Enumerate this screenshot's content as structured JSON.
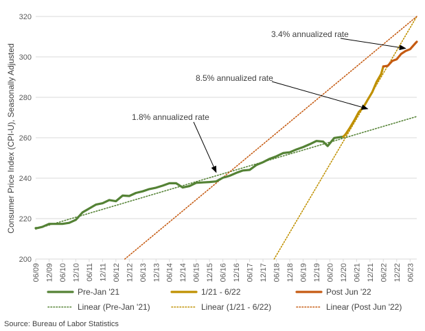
{
  "chart_data": {
    "type": "line",
    "title": "",
    "xlabel": "",
    "ylabel": "Consumer Price Index (CPI-U), Seasonally Adjusted",
    "ylim": [
      200,
      320
    ],
    "yticks": [
      200,
      220,
      240,
      260,
      280,
      300,
      320
    ],
    "xlim": [
      "2009-06",
      "2023-09"
    ],
    "xtick_labels": [
      "06/09",
      "12/09",
      "06/10",
      "12/10",
      "06/11",
      "12/11",
      "06/12",
      "12/12",
      "06/13",
      "12/13",
      "06/14",
      "12/14",
      "06/15",
      "12/15",
      "06/16",
      "12/16",
      "06/17",
      "12/17",
      "06/18",
      "12/18",
      "06/19",
      "12/19",
      "06/20",
      "12/20",
      "06/21",
      "12/21",
      "06/22",
      "12/22",
      "06/23"
    ],
    "grid": "horizontal",
    "legend_position": "bottom",
    "colors": {
      "pre": "#548235",
      "mid": "#BF9000",
      "post": "#C55A11",
      "grid": "#D9D9D9",
      "axis_text": "#595959"
    },
    "series": [
      {
        "name": "Pre-Jan '21",
        "style": "solid",
        "color": "#548235",
        "x": [
          "2009-06",
          "2009-07",
          "2009-09",
          "2009-12",
          "2010-03",
          "2010-06",
          "2010-09",
          "2010-12",
          "2011-03",
          "2011-06",
          "2011-09",
          "2011-12",
          "2012-03",
          "2012-06",
          "2012-09",
          "2012-12",
          "2013-03",
          "2013-06",
          "2013-09",
          "2013-12",
          "2014-03",
          "2014-06",
          "2014-09",
          "2014-12",
          "2015-03",
          "2015-06",
          "2015-09",
          "2015-12",
          "2016-03",
          "2016-06",
          "2016-09",
          "2016-12",
          "2017-03",
          "2017-06",
          "2017-09",
          "2017-12",
          "2018-03",
          "2018-06",
          "2018-09",
          "2018-12",
          "2019-03",
          "2019-06",
          "2019-09",
          "2019-12",
          "2020-03",
          "2020-05",
          "2020-08",
          "2020-12"
        ],
        "values": [
          215.3,
          215.4,
          215.9,
          217.4,
          217.4,
          217.4,
          217.9,
          219.4,
          223.1,
          225.0,
          226.9,
          227.6,
          229.2,
          228.6,
          231.4,
          231.2,
          232.7,
          233.5,
          234.6,
          235.3,
          236.3,
          237.5,
          237.5,
          235.4,
          236.1,
          237.7,
          237.9,
          238.1,
          238.4,
          240.2,
          241.2,
          242.6,
          243.8,
          244.1,
          246.5,
          247.9,
          249.6,
          250.8,
          252.4,
          252.8,
          254.2,
          255.4,
          256.8,
          258.4,
          258.1,
          255.9,
          259.9,
          260.5
        ]
      },
      {
        "name": "1/21 - 6/22",
        "style": "solid",
        "color": "#BF9000",
        "x": [
          "2020-12",
          "2021-01",
          "2021-03",
          "2021-05",
          "2021-07",
          "2021-09",
          "2021-11",
          "2022-01",
          "2022-03",
          "2022-05",
          "2022-06"
        ],
        "values": [
          260.5,
          261.6,
          264.9,
          268.6,
          272.7,
          275.0,
          278.8,
          282.5,
          287.7,
          291.5,
          295.3
        ]
      },
      {
        "name": "Post Jun '22",
        "style": "solid",
        "color": "#C55A11",
        "x": [
          "2022-06",
          "2022-08",
          "2022-10",
          "2022-12",
          "2023-02",
          "2023-04",
          "2023-06",
          "2023-08",
          "2023-09"
        ],
        "values": [
          295.3,
          295.6,
          298.0,
          298.8,
          301.5,
          302.9,
          303.8,
          306.3,
          307.5
        ]
      },
      {
        "name": "Linear (Pre-Jan '21)",
        "style": "dotted",
        "color": "#548235",
        "x": [
          "2009-06",
          "2023-09"
        ],
        "values": [
          214.8,
          270.5
        ]
      },
      {
        "name": "Linear (1/21 - 6/22)",
        "style": "dotted",
        "color": "#BF9000",
        "x": [
          "2018-05",
          "2023-09"
        ],
        "values": [
          200.0,
          320.0
        ]
      },
      {
        "name": "Linear (Post Jun '22)",
        "style": "dotted",
        "color": "#C55A11",
        "x": [
          "2012-10",
          "2023-09"
        ],
        "values": [
          200.0,
          320.0
        ]
      }
    ],
    "annotations": [
      {
        "text": "3.4% annualized rate",
        "target_x": "2023-04",
        "target_y": 304.2
      },
      {
        "text": "8.5% annualized rate",
        "target_x": "2021-11",
        "target_y": 274.3
      },
      {
        "text": "1.8% annualized rate",
        "target_x": "2016-03",
        "target_y": 242.9
      }
    ],
    "source": "Source: Bureau of Labor Statistics"
  }
}
